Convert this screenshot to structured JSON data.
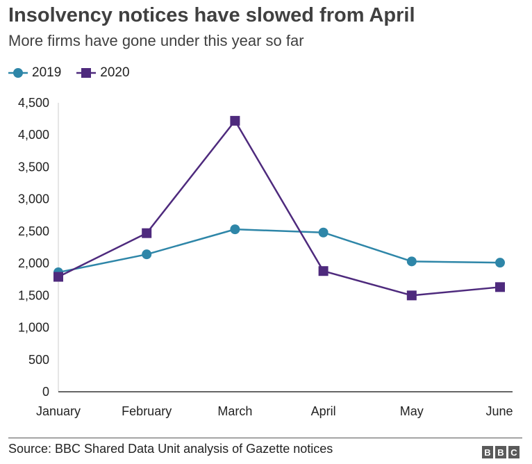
{
  "header": {
    "title": "Insolvency notices have slowed from April",
    "subtitle": "More firms have gone under this year so far"
  },
  "footer": {
    "source": "Source: BBC Shared Data Unit analysis of Gazette notices",
    "logo": [
      "B",
      "B",
      "C"
    ]
  },
  "chart_data": {
    "type": "line",
    "categories": [
      "January",
      "February",
      "March",
      "April",
      "May",
      "June"
    ],
    "series": [
      {
        "name": "2019",
        "values": [
          1860,
          2140,
          2530,
          2480,
          2030,
          2010
        ],
        "color": "#2e86a8",
        "marker": "circle"
      },
      {
        "name": "2020",
        "values": [
          1790,
          2470,
          4220,
          1880,
          1500,
          1630
        ],
        "color": "#4e2a7d",
        "marker": "square"
      }
    ],
    "yticks": [
      "0",
      "500",
      "1,000",
      "1,500",
      "2,000",
      "2,500",
      "3,000",
      "3,500",
      "4,000",
      "4,500"
    ],
    "ylim": [
      0,
      4500
    ],
    "legend_position": "top-left",
    "grid": false
  }
}
